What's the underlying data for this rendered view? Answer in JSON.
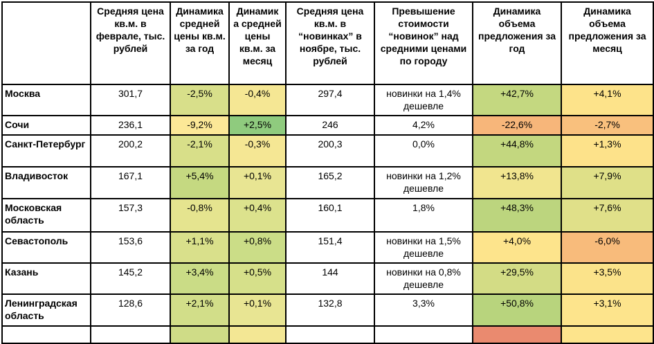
{
  "headers": [
    "",
    "Средняя цена кв.м. в феврале, тыс. рублей",
    "Динамика средней цены кв.м. за год",
    "Динамик а средней цены кв.м. за месяц",
    "Средняя цена кв.м. в “новинках” в ноябре, тыс. рублей",
    "Превышение стоимости “новинок” над средними ценами по городу",
    "Динамика объема предложения за год",
    "Динамика объема предложения за месяц"
  ],
  "rows": [
    {
      "city": "Москва",
      "price": "301,7",
      "dyn_year": "-2,5%",
      "dyn_month": "-0,4%",
      "new_price": "297,4",
      "excess": "новинки на 1,4% дешевле",
      "supply_year": "+42,7%",
      "supply_month": "+4,1%",
      "colors": [
        "#d8df8a",
        "#f5e794",
        "#c4d880",
        "#fde38a"
      ]
    },
    {
      "city": "Сочи",
      "price": "236,1",
      "dyn_year": "-9,2%",
      "dyn_month": "+2,5%",
      "new_price": "246",
      "excess": "4,2%",
      "supply_year": "-22,6%",
      "supply_month": "-2,7%",
      "colors": [
        "#fce897",
        "#8fcb7e",
        "#f7b67a",
        "#f9c07d"
      ]
    },
    {
      "city": "Санкт-Петербург",
      "price": "200,2",
      "dyn_year": "-2,1%",
      "dyn_month": "-0,3%",
      "new_price": "200,3",
      "excess": "0,0%",
      "supply_year": "+44,8%",
      "supply_month": "+1,3%",
      "colors": [
        "#d8df89",
        "#f5e794",
        "#c3d77f",
        "#fde28a"
      ]
    },
    {
      "city": "Владивосток",
      "price": "167,1",
      "dyn_year": "+5,4%",
      "dyn_month": "+0,1%",
      "new_price": "165,2",
      "excess": "новинки на 1,2% дешевле",
      "supply_year": "+13,8%",
      "supply_month": "+7,9%",
      "colors": [
        "#c5d981",
        "#e8e593",
        "#f1e58f",
        "#dfe088"
      ]
    },
    {
      "city": "Московская область",
      "price": "157,3",
      "dyn_year": "-0,8%",
      "dyn_month": "+0,4%",
      "new_price": "160,1",
      "excess": "1,8%",
      "supply_year": "+48,3%",
      "supply_month": "+7,6%",
      "colors": [
        "#e5e48f",
        "#dce28d",
        "#bcd57e",
        "#e0e089"
      ]
    },
    {
      "city": "Севастополь",
      "price": "153,6",
      "dyn_year": "+1,1%",
      "dyn_month": "+0,8%",
      "new_price": "151,4",
      "excess": "новинки на 1,5% дешевле",
      "supply_year": "+4,0%",
      "supply_month": "-6,0%",
      "colors": [
        "#d9e08b",
        "#cbdd87",
        "#fde48c",
        "#f8bb7b"
      ]
    },
    {
      "city": "Казань",
      "price": "145,2",
      "dyn_year": "+3,4%",
      "dyn_month": "+0,5%",
      "new_price": "144",
      "excess": "новинки на 0,8% дешевле",
      "supply_year": "+29,5%",
      "supply_month": "+3,5%",
      "colors": [
        "#cadc86",
        "#d6e08a",
        "#d3dc85",
        "#fbe38a"
      ]
    },
    {
      "city": "Ленинградская область",
      "price": "128,6",
      "dyn_year": "+2,1%",
      "dyn_month": "+0,1%",
      "new_price": "132,8",
      "excess": "3,3%",
      "supply_year": "+50,8%",
      "supply_month": "+3,1%",
      "colors": [
        "#d2de89",
        "#e8e593",
        "#b8d47d",
        "#fde48c"
      ]
    },
    {
      "city": "",
      "price": "",
      "dyn_year": "",
      "dyn_month": "",
      "new_price": "",
      "excess": "",
      "supply_year": "",
      "supply_month": "",
      "colors": [
        "#cfdc87",
        "#f3e794",
        "#ea8a6f",
        "#fde48c"
      ]
    }
  ]
}
